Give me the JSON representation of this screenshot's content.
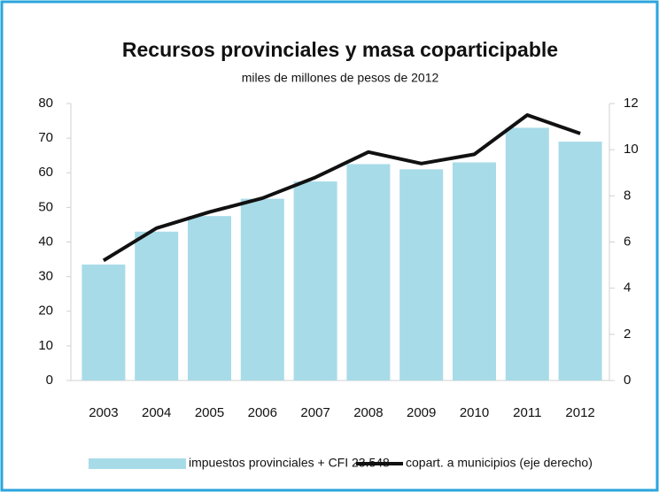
{
  "chart_data": {
    "type": "bar",
    "title": "Recursos provinciales y masa coparticipable",
    "subtitle": "miles de millones de pesos de 2012",
    "categories": [
      "2003",
      "2004",
      "2005",
      "2006",
      "2007",
      "2008",
      "2009",
      "2010",
      "2011",
      "2012"
    ],
    "series": [
      {
        "name": "impuestos provinciales + CFI 23.548",
        "type": "bar",
        "color": "#a8dbe8",
        "values": [
          33.5,
          43,
          47.5,
          52.5,
          57.5,
          62.5,
          61,
          63,
          73,
          69
        ]
      },
      {
        "name": "copart. a municipios (eje derecho)",
        "type": "line",
        "axis": "y2",
        "color": "#111111",
        "values": [
          5.2,
          6.6,
          7.3,
          7.9,
          8.8,
          9.9,
          9.4,
          9.8,
          11.5,
          10.7
        ]
      }
    ],
    "ylim": [
      0,
      80
    ],
    "yticks": [
      0,
      10,
      20,
      30,
      40,
      50,
      60,
      70,
      80
    ],
    "y2lim": [
      0,
      12
    ],
    "y2ticks": [
      0,
      2,
      4,
      6,
      8,
      10,
      12
    ],
    "legend": "bottom",
    "grid": false
  }
}
